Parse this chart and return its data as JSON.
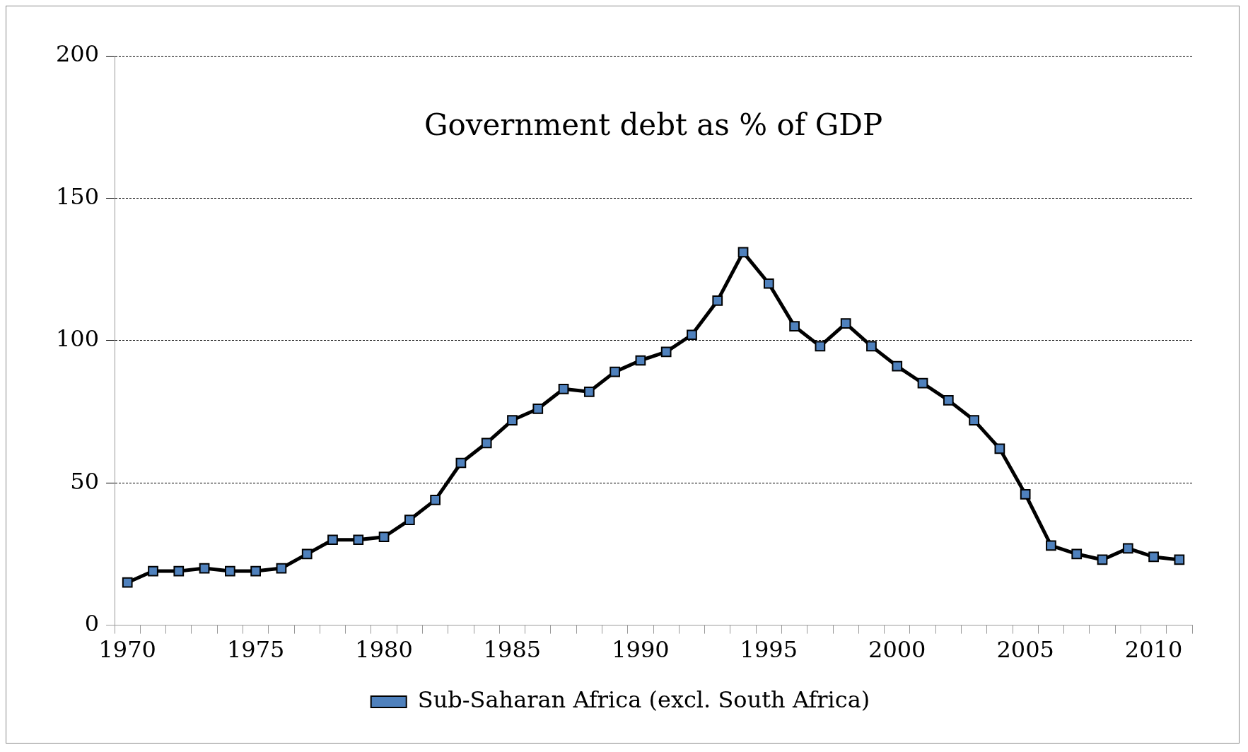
{
  "chart_data": {
    "type": "line",
    "title": "Government debt as % of GDP",
    "categories": [
      "1970",
      null,
      null,
      null,
      null,
      "1975",
      null,
      null,
      null,
      null,
      "1980",
      null,
      null,
      null,
      null,
      "1985",
      null,
      null,
      null,
      null,
      "1990",
      null,
      null,
      null,
      null,
      "1995",
      null,
      null,
      null,
      null,
      "2000",
      null,
      null,
      null,
      null,
      "2005",
      null,
      null,
      null,
      null,
      "2010",
      null
    ],
    "series": [
      {
        "name": "Sub-Saharan Africa (excl. South Africa)",
        "color": "#000000",
        "values": [
          15,
          19,
          19,
          20,
          19,
          19,
          20,
          25,
          30,
          30,
          31,
          37,
          44,
          57,
          64,
          72,
          76,
          83,
          82,
          89,
          93,
          96,
          102,
          114,
          131,
          120,
          105,
          98,
          106,
          98,
          91,
          85,
          79,
          72,
          62,
          46,
          28,
          25,
          23,
          27,
          24,
          23
        ]
      }
    ],
    "ylim": [
      0,
      200
    ],
    "yticks": [
      0,
      50,
      100,
      150,
      200
    ],
    "grid": "y",
    "legend": "bottom",
    "marker": "square",
    "line_style": "solid"
  }
}
